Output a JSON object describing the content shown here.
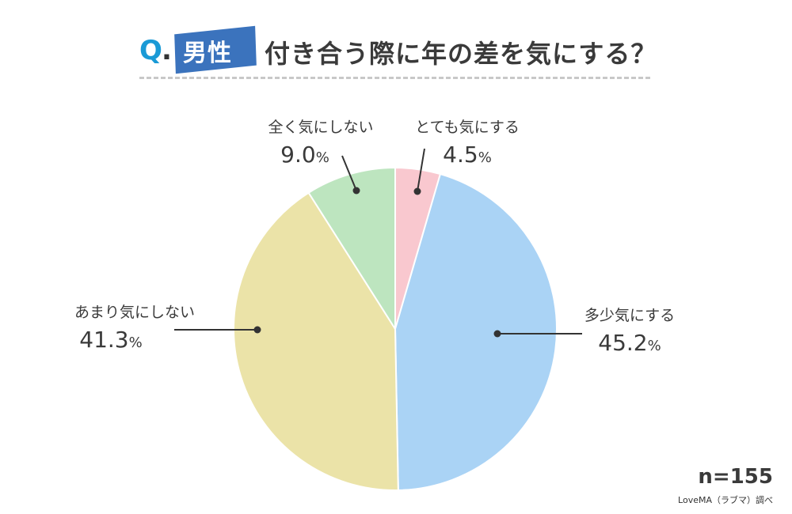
{
  "header": {
    "q_mark": "Q",
    "q_dot": ".",
    "gender": "男性",
    "question": "付き合う際に年の差を気にする？"
  },
  "labels": {
    "very_much": {
      "name": "とても気にする",
      "value": "4.5",
      "unit": "%"
    },
    "somewhat": {
      "name": "多少気にする",
      "value": "45.2",
      "unit": "%"
    },
    "not_much": {
      "name": "あまり気にしない",
      "value": "41.3",
      "unit": "%"
    },
    "not_at_all": {
      "name": "全く気にしない",
      "value": "9.0",
      "unit": "%"
    }
  },
  "footer": {
    "n": "n=155",
    "source": "LoveMA（ラブマ）調べ"
  },
  "colors": {
    "very_much": "#f9c8cf",
    "somewhat": "#aad3f5",
    "not_much": "#ebe3a8",
    "not_at_all": "#bde5bf",
    "accent_q": "#1a9ad6",
    "badge": "#3b73bd"
  },
  "chart_data": {
    "type": "pie",
    "title": "Q. 男性 付き合う際に年の差を気にする？",
    "categories": [
      "とても気にする",
      "多少気にする",
      "あまり気にしない",
      "全く気にしない"
    ],
    "values": [
      4.5,
      45.2,
      41.3,
      9.0
    ],
    "unit": "%",
    "colors": [
      "#f9c8cf",
      "#aad3f5",
      "#ebe3a8",
      "#bde5bf"
    ],
    "start_angle": "12 o'clock, clockwise",
    "n": 155,
    "source": "LoveMA（ラブマ）調べ",
    "legend": "callout labels"
  }
}
